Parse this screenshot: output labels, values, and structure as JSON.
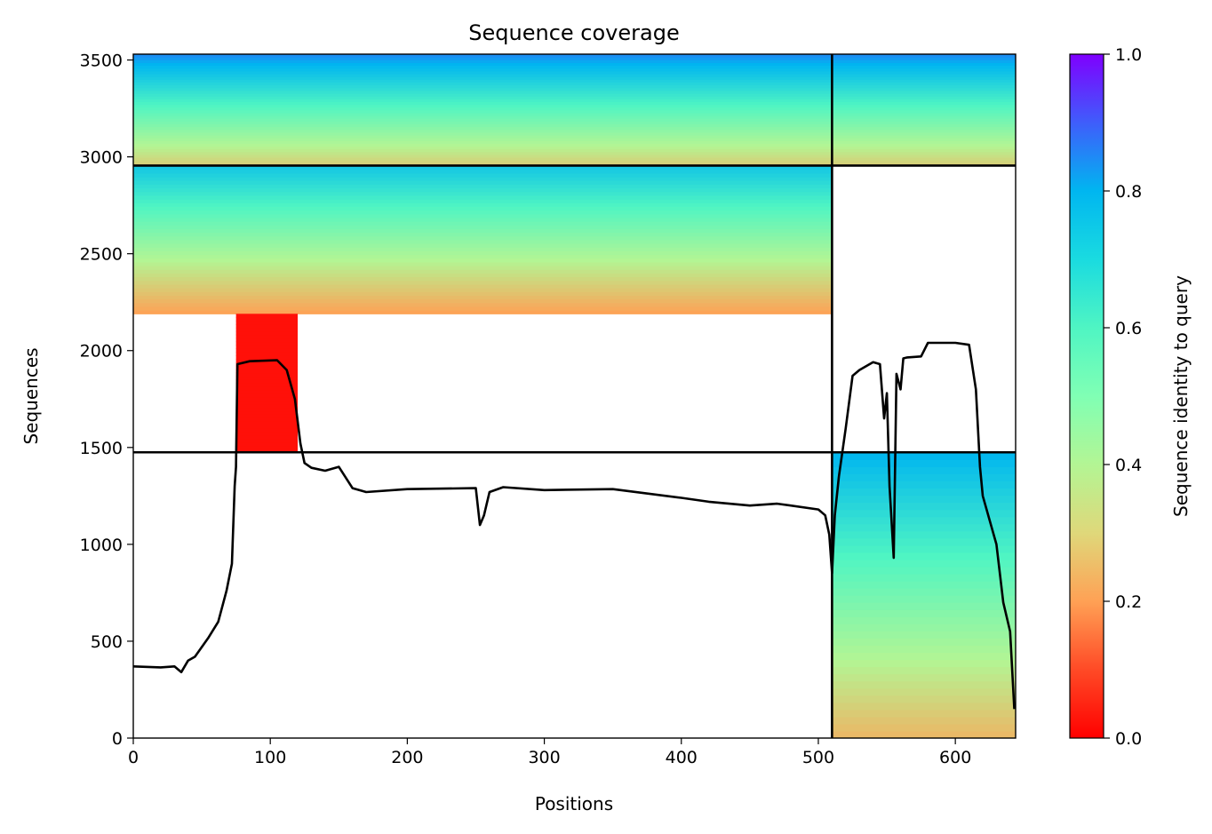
{
  "chart_data": {
    "type": "heatmap",
    "title": "Sequence coverage",
    "xlabel": "Positions",
    "ylabel": "Sequences",
    "xlim": [
      0,
      644
    ],
    "ylim": [
      0,
      3530
    ],
    "x_ticks": [
      0,
      100,
      200,
      300,
      400,
      500,
      600
    ],
    "y_ticks": [
      0,
      500,
      1000,
      1500,
      2000,
      2500,
      3000,
      3500
    ],
    "colorbar": {
      "label": "Sequence identity to query",
      "range": [
        0,
        1
      ],
      "ticks": [
        0.0,
        0.2,
        0.4,
        0.6,
        0.8,
        1.0
      ],
      "tick_labels": [
        "0.0",
        "0.2",
        "0.4",
        "0.6",
        "0.8",
        "1.0"
      ],
      "colormap": "rainbow",
      "colors": [
        "#ff0000",
        "#ffa155",
        "#b3f594",
        "#4ff5c3",
        "#00b6f0",
        "#7f00ff"
      ]
    },
    "segment_boundaries": {
      "positions": [
        510
      ],
      "sequences": [
        1475,
        2955
      ]
    },
    "blocks": [
      {
        "name": "block-1",
        "seq_range": [
          2955,
          3530
        ],
        "pos_range": [
          0,
          510
        ],
        "identity_top": 0.85,
        "identity_bottom": 0.3
      },
      {
        "name": "block-2",
        "seq_range": [
          2955,
          3530
        ],
        "pos_range": [
          510,
          644
        ],
        "identity_top": 0.85,
        "identity_bottom": 0.3
      },
      {
        "name": "block-3",
        "seq_range": [
          2190,
          2955
        ],
        "pos_range": [
          0,
          510
        ],
        "identity_top": 0.75,
        "identity_bottom": 0.2
      },
      {
        "name": "block-4",
        "seq_range": [
          1475,
          2190
        ],
        "pos_range": [
          75,
          120
        ],
        "identity_top": 0.02,
        "identity_bottom": 0.02
      },
      {
        "name": "block-5",
        "seq_range": [
          0,
          1475
        ],
        "pos_range": [
          510,
          644
        ],
        "identity_top": 0.8,
        "identity_bottom": 0.25
      }
    ],
    "coverage_line": {
      "x": [
        0,
        20,
        30,
        35,
        40,
        45,
        55,
        62,
        68,
        72,
        74,
        75,
        76,
        85,
        105,
        112,
        118,
        122,
        125,
        130,
        140,
        150,
        160,
        170,
        200,
        250,
        253,
        256,
        260,
        270,
        300,
        350,
        400,
        420,
        450,
        470,
        500,
        505,
        508,
        510,
        512,
        515,
        520,
        525,
        530,
        540,
        545,
        548,
        550,
        552,
        555,
        557,
        560,
        562,
        565,
        575,
        580,
        600,
        610,
        615,
        618,
        620,
        630,
        635,
        640,
        643
      ],
      "y": [
        370,
        365,
        370,
        340,
        400,
        420,
        520,
        600,
        760,
        900,
        1300,
        1400,
        1930,
        1945,
        1950,
        1900,
        1750,
        1520,
        1420,
        1395,
        1380,
        1400,
        1290,
        1270,
        1285,
        1290,
        1100,
        1150,
        1270,
        1295,
        1280,
        1285,
        1240,
        1220,
        1200,
        1210,
        1180,
        1150,
        1050,
        850,
        1150,
        1350,
        1600,
        1870,
        1900,
        1940,
        1930,
        1650,
        1780,
        1300,
        930,
        1880,
        1800,
        1960,
        1965,
        1970,
        2040,
        2040,
        2030,
        1800,
        1400,
        1250,
        1000,
        700,
        550,
        150
      ]
    }
  }
}
